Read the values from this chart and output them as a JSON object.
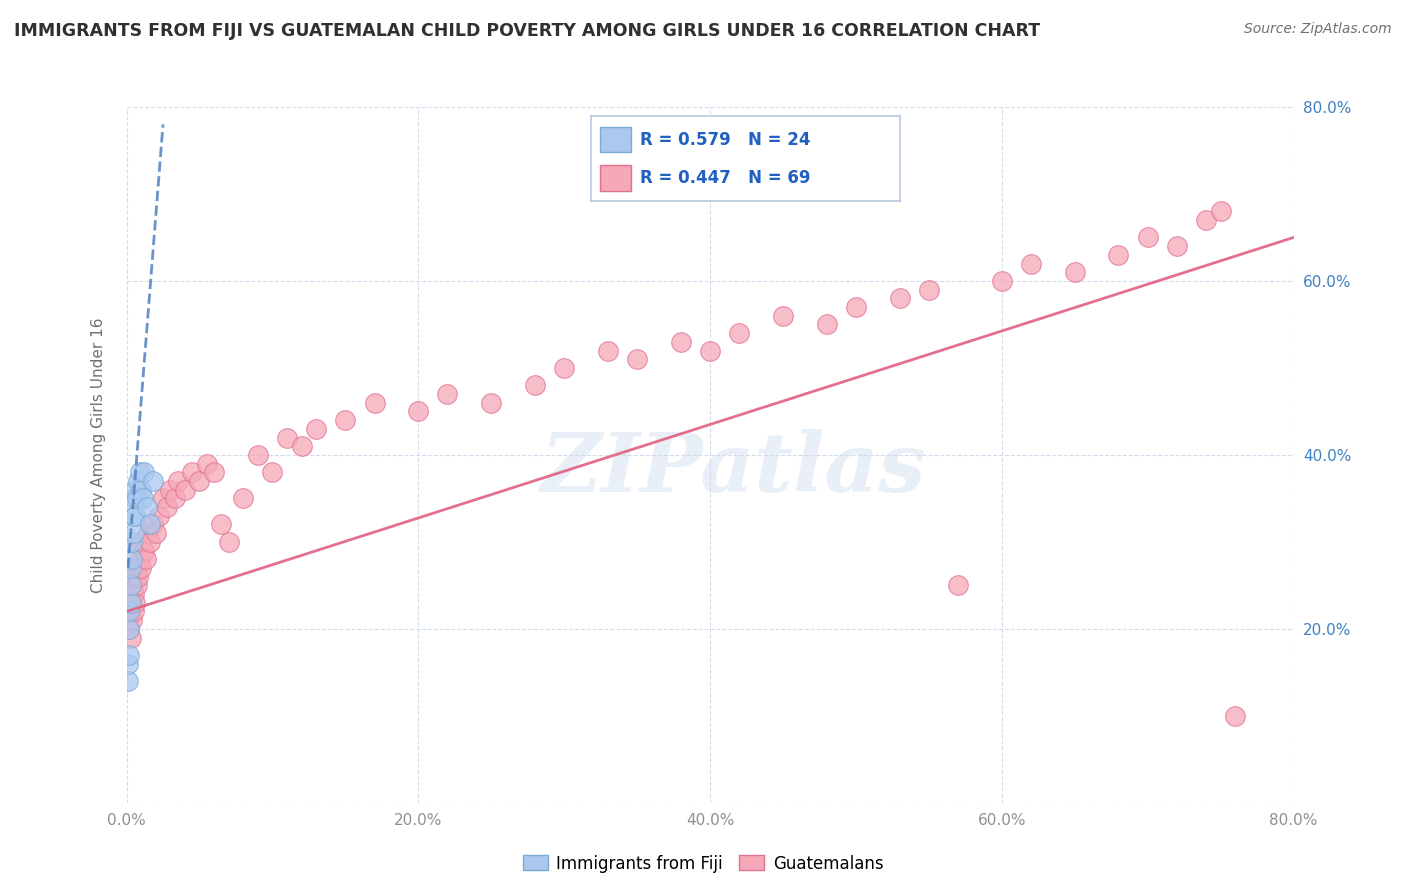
{
  "title": "IMMIGRANTS FROM FIJI VS GUATEMALAN CHILD POVERTY AMONG GIRLS UNDER 16 CORRELATION CHART",
  "source": "Source: ZipAtlas.com",
  "ylabel": "Child Poverty Among Girls Under 16",
  "xlim": [
    0.0,
    0.8
  ],
  "ylim": [
    0.0,
    0.8
  ],
  "xticks": [
    0.0,
    0.2,
    0.4,
    0.6,
    0.8
  ],
  "yticks": [
    0.0,
    0.2,
    0.4,
    0.6,
    0.8
  ],
  "xticklabels": [
    "0.0%",
    "20.0%",
    "40.0%",
    "60.0%",
    "80.0%"
  ],
  "right_yticklabels": [
    "80.0%",
    "60.0%",
    "40.0%",
    "20.0%"
  ],
  "right_yticks": [
    0.8,
    0.6,
    0.4,
    0.2
  ],
  "fiji_R": 0.579,
  "fiji_N": 24,
  "guatemalan_R": 0.447,
  "guatemalan_N": 69,
  "fiji_color": "#aac8f0",
  "guatemalan_color": "#f5a8b8",
  "fiji_edge_color": "#7aaad0",
  "guatemalan_edge_color": "#e07090",
  "fiji_line_color": "#5080c0",
  "guatemalan_line_color": "#e06080",
  "fiji_x": [
    0.001,
    0.001,
    0.002,
    0.002,
    0.002,
    0.003,
    0.003,
    0.003,
    0.004,
    0.004,
    0.005,
    0.005,
    0.005,
    0.006,
    0.006,
    0.007,
    0.008,
    0.009,
    0.01,
    0.011,
    0.012,
    0.014,
    0.016,
    0.018
  ],
  "fiji_y": [
    0.14,
    0.16,
    0.17,
    0.2,
    0.22,
    0.23,
    0.25,
    0.27,
    0.28,
    0.3,
    0.31,
    0.33,
    0.35,
    0.33,
    0.36,
    0.35,
    0.37,
    0.38,
    0.36,
    0.35,
    0.38,
    0.34,
    0.32,
    0.37
  ],
  "guatemalan_x": [
    0.001,
    0.002,
    0.002,
    0.003,
    0.003,
    0.004,
    0.004,
    0.005,
    0.005,
    0.006,
    0.006,
    0.007,
    0.007,
    0.008,
    0.009,
    0.01,
    0.01,
    0.012,
    0.013,
    0.015,
    0.016,
    0.018,
    0.02,
    0.022,
    0.025,
    0.028,
    0.03,
    0.033,
    0.035,
    0.04,
    0.045,
    0.05,
    0.055,
    0.06,
    0.065,
    0.07,
    0.08,
    0.09,
    0.1,
    0.11,
    0.12,
    0.13,
    0.15,
    0.17,
    0.2,
    0.22,
    0.25,
    0.28,
    0.3,
    0.33,
    0.35,
    0.38,
    0.4,
    0.42,
    0.45,
    0.48,
    0.5,
    0.53,
    0.55,
    0.57,
    0.6,
    0.62,
    0.65,
    0.68,
    0.7,
    0.72,
    0.74,
    0.75,
    0.76
  ],
  "guatemalan_y": [
    0.21,
    0.2,
    0.22,
    0.19,
    0.23,
    0.21,
    0.25,
    0.22,
    0.24,
    0.23,
    0.26,
    0.25,
    0.27,
    0.26,
    0.28,
    0.27,
    0.3,
    0.29,
    0.28,
    0.31,
    0.3,
    0.32,
    0.31,
    0.33,
    0.35,
    0.34,
    0.36,
    0.35,
    0.37,
    0.36,
    0.38,
    0.37,
    0.39,
    0.38,
    0.32,
    0.3,
    0.35,
    0.4,
    0.38,
    0.42,
    0.41,
    0.43,
    0.44,
    0.46,
    0.45,
    0.47,
    0.46,
    0.48,
    0.5,
    0.52,
    0.51,
    0.53,
    0.52,
    0.54,
    0.56,
    0.55,
    0.57,
    0.58,
    0.59,
    0.25,
    0.6,
    0.62,
    0.61,
    0.63,
    0.65,
    0.64,
    0.67,
    0.68,
    0.1
  ],
  "guate_trend_x0": 0.0,
  "guate_trend_y0": 0.22,
  "guate_trend_x1": 0.8,
  "guate_trend_y1": 0.65,
  "fiji_trend_x0": 0.001,
  "fiji_trend_y0": 0.27,
  "fiji_trend_x1": 0.025,
  "fiji_trend_y1": 0.78,
  "watermark_text": "ZIPatlas",
  "legend_fiji_label": "Immigrants from Fiji",
  "legend_guatemalan_label": "Guatemalans",
  "background_color": "#ffffff",
  "grid_color": "#c8d4e8",
  "title_color": "#303030",
  "axis_label_color": "#707070",
  "tick_label_color": "#909090",
  "right_tick_color": "#4080c0",
  "legend_box_color": "#b8c8e0",
  "r_n_color": "#2060c0"
}
